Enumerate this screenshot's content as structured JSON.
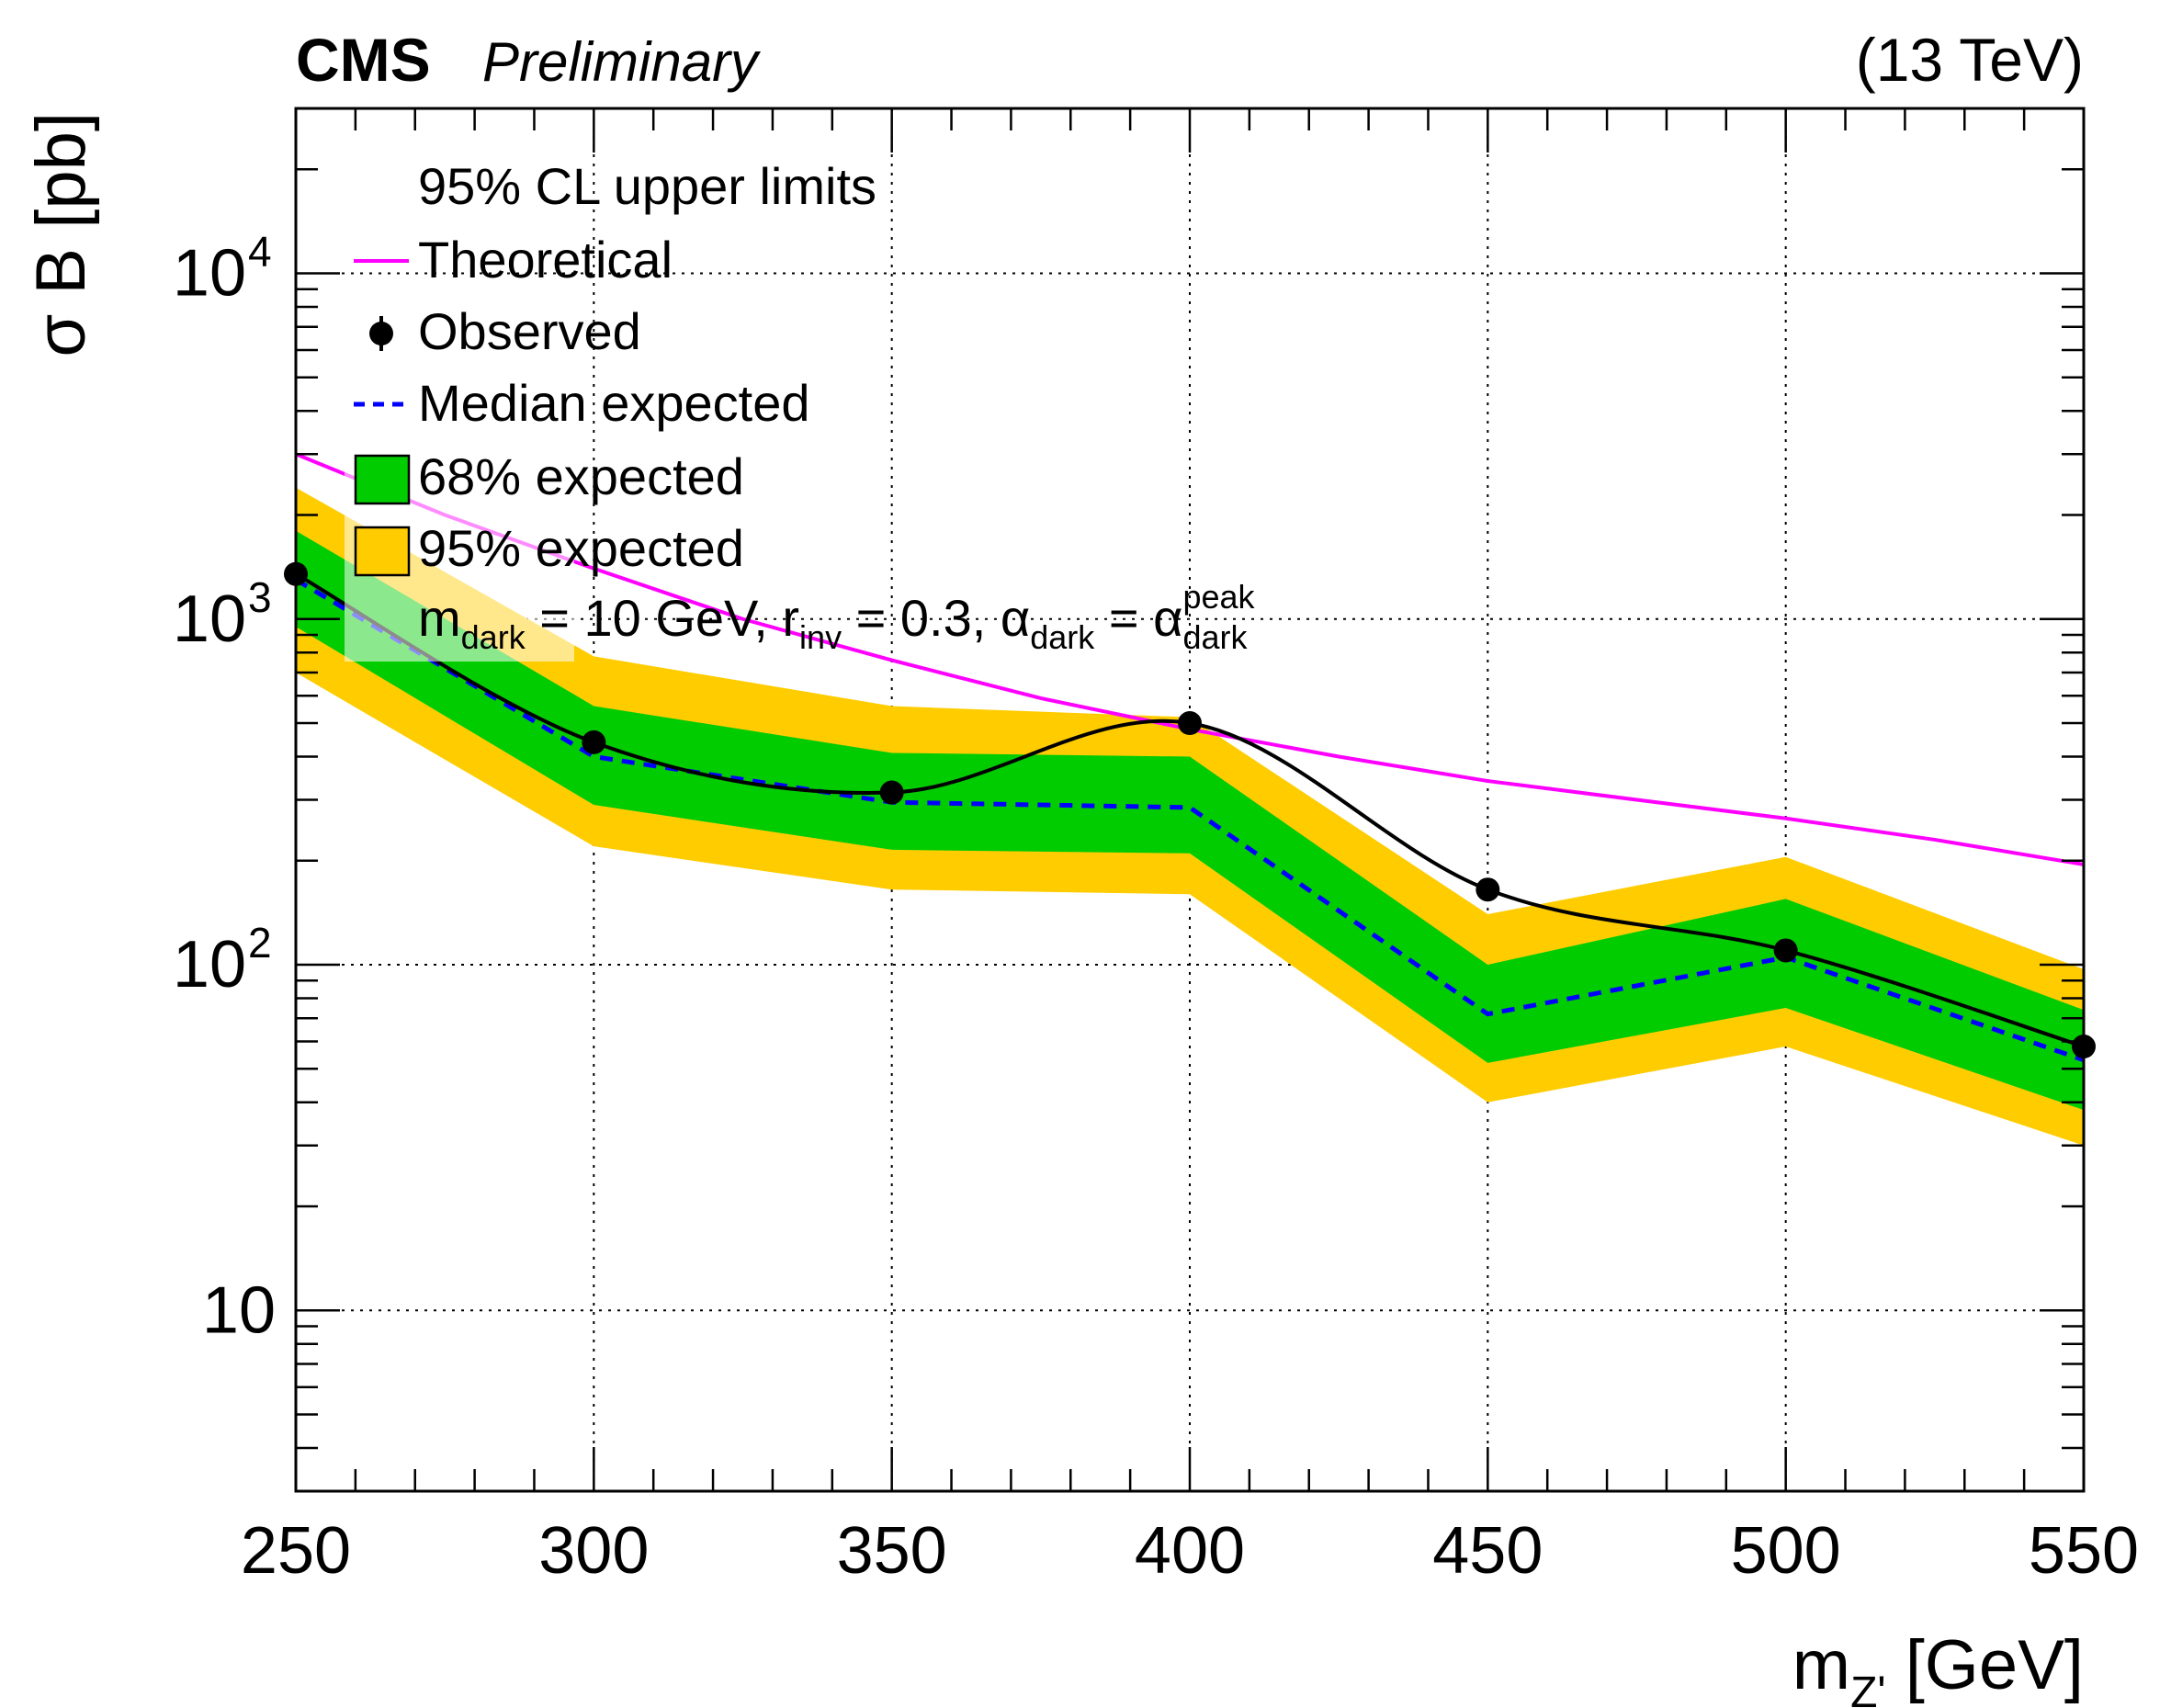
{
  "header": {
    "experiment": "CMS",
    "status": "Preliminary",
    "energy": "(13 TeV)"
  },
  "chart_data": {
    "type": "line",
    "xlabel": {
      "main": "m",
      "sub": "Z'",
      "unit": " [GeV]"
    },
    "ylabel": "σ B [pb]",
    "xlim": [
      250,
      550
    ],
    "ylim": [
      3,
      30000
    ],
    "yscale": "log",
    "grid": true,
    "x_ticks": [
      250,
      300,
      350,
      400,
      450,
      500,
      550
    ],
    "x_tick_labels": [
      "250",
      "300",
      "350",
      "400",
      "450",
      "500",
      "550"
    ],
    "y_ticks": [
      {
        "value": 10,
        "base": "10",
        "exp": ""
      },
      {
        "value": 100,
        "base": "10",
        "exp": "2"
      },
      {
        "value": 1000,
        "base": "10",
        "exp": "3"
      },
      {
        "value": 10000,
        "base": "10",
        "exp": "4"
      }
    ],
    "x": [
      250,
      300,
      350,
      400,
      450,
      500,
      550
    ],
    "series": [
      {
        "name": "Theoretical",
        "role": "theory",
        "color": "#ff00ff",
        "x": [
          250,
          275,
          300,
          325,
          350,
          375,
          400,
          425,
          450,
          475,
          500,
          525,
          550
        ],
        "values": [
          3000,
          2000,
          1400,
          1000,
          760,
          590,
          480,
          400,
          340,
          300,
          265,
          230,
          195
        ]
      },
      {
        "name": "Observed",
        "role": "observed",
        "color": "#000000",
        "values": [
          1350,
          440,
          315,
          500,
          165,
          110,
          58
        ]
      },
      {
        "name": "Median expected",
        "role": "expected",
        "color": "#0000ff",
        "values": [
          1300,
          400,
          295,
          285,
          72,
          105,
          53
        ]
      },
      {
        "name": "68% expected",
        "role": "band68",
        "color": "#00cc00",
        "low": [
          950,
          290,
          215,
          210,
          52,
          75,
          38
        ],
        "high": [
          1800,
          560,
          410,
          400,
          100,
          155,
          74
        ]
      },
      {
        "name": "95% expected",
        "role": "band95",
        "color": "#ffcc00",
        "low": [
          700,
          220,
          165,
          160,
          40,
          58,
          30
        ],
        "high": [
          2400,
          780,
          560,
          520,
          140,
          205,
          97
        ]
      }
    ],
    "legend": {
      "placement": "top-left",
      "title": "95% CL upper limits",
      "annotation": {
        "m": "m",
        "m_sub": "dark",
        "m_val": " = 10 GeV, ",
        "r": "r",
        "r_sub": "inv",
        "r_val": " = 0.3, ",
        "a": "α",
        "a_sub": "dark",
        "a_eq": " = ",
        "a2": "α",
        "a2_sub": "dark",
        "a2_sup": "peak"
      }
    }
  }
}
